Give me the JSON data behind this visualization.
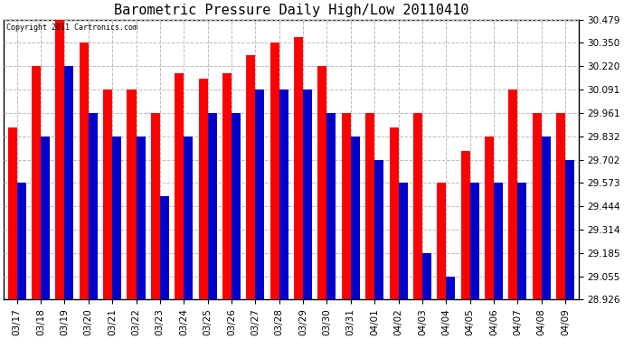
{
  "title": "Barometric Pressure Daily High/Low 20110410",
  "copyright_text": "Copyright 2011 Cartronics.com",
  "categories": [
    "03/17",
    "03/18",
    "03/19",
    "03/20",
    "03/21",
    "03/22",
    "03/23",
    "03/24",
    "03/25",
    "03/26",
    "03/27",
    "03/28",
    "03/29",
    "03/30",
    "03/31",
    "04/01",
    "04/02",
    "04/03",
    "04/04",
    "04/05",
    "04/06",
    "04/07",
    "04/08",
    "04/09"
  ],
  "highs": [
    29.88,
    30.22,
    30.479,
    30.35,
    30.091,
    30.091,
    29.961,
    30.18,
    30.15,
    30.18,
    30.28,
    30.35,
    30.38,
    30.22,
    29.961,
    29.961,
    29.88,
    29.961,
    29.573,
    29.75,
    29.832,
    30.091,
    29.961,
    29.961
  ],
  "lows": [
    29.573,
    29.832,
    30.22,
    29.961,
    29.832,
    29.832,
    29.5,
    29.832,
    29.961,
    29.961,
    30.091,
    30.091,
    30.091,
    29.961,
    29.832,
    29.702,
    29.573,
    29.185,
    29.055,
    29.573,
    29.573,
    29.573,
    29.832,
    29.702
  ],
  "high_color": "#ff0000",
  "low_color": "#0000cc",
  "yticks": [
    28.926,
    29.055,
    29.185,
    29.314,
    29.444,
    29.573,
    29.702,
    29.832,
    29.961,
    30.091,
    30.22,
    30.35,
    30.479
  ],
  "ymin": 28.926,
  "ymax": 30.479,
  "background_color": "#ffffff",
  "plot_background": "#ffffff",
  "grid_color": "#bbbbbb",
  "title_fontsize": 11,
  "tick_fontsize": 7.5,
  "bar_width": 0.38
}
